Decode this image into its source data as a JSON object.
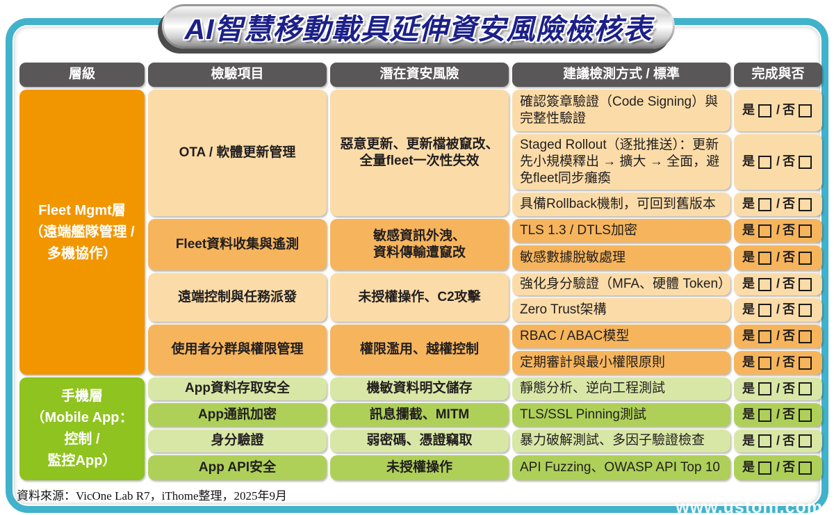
{
  "title": "AI智慧移動載具延伸資安風險檢核表",
  "palette": {
    "frame_teal": "#41b2cc",
    "header_gray": "#595757",
    "fleet_orange": "#f29600",
    "mobile_green": "#8fc31f",
    "peach_light": "#fbdca8",
    "peach_dark": "#f6b55c",
    "green_light": "#d8e7a6",
    "green_dark": "#aed059",
    "title_navy": "#1c2088"
  },
  "table": {
    "headers": [
      "層級",
      "檢驗項目",
      "潛在資安風險",
      "建議檢測方式 / 標準",
      "完成與否"
    ],
    "levels": [
      {
        "label": "Fleet Mgmt層\n（遠端艦隊管理 /\n多機協作）"
      },
      {
        "label": "手機層\n（Mobile App：\n控制 /\n監控App）"
      }
    ],
    "items": [
      {
        "name": "OTA / 軟體更新管理",
        "risk": "惡意更新、更新檔被竄改、\n全量fleet一次性失效"
      },
      {
        "name": "Fleet資料收集與遙測",
        "risk": "敏感資訊外洩、\n資料傳輸遭竄改"
      },
      {
        "name": "遠端控制與任務派發",
        "risk": "未授權操作、C2攻擊"
      },
      {
        "name": "使用者分群與權限管理",
        "risk": "權限濫用、越權控制"
      },
      {
        "name": "App資料存取安全",
        "risk": "機敏資料明文儲存"
      },
      {
        "name": "App通訊加密",
        "risk": "訊息攔截、MITM"
      },
      {
        "name": "身分驗證",
        "risk": "弱密碼、憑證竊取"
      },
      {
        "name": "App API安全",
        "risk": "未授權操作"
      }
    ],
    "methods": [
      "確認簽章驗證（Code Signing）與完整性驗證",
      "Staged Rollout（逐批推送）：更新先小規模釋出 → 擴大 → 全面，避免fleet同步癱瘓",
      "具備Rollback機制，可回到舊版本",
      "TLS 1.3 / DTLS加密",
      "敏感數據脫敏處理",
      "強化身分驗證（MFA、硬體 Token）",
      "Zero Trust架構",
      "RBAC / ABAC模型",
      "定期審計與最小權限原則",
      "靜態分析、逆向工程測試",
      "TLS/SSL Pinning測試",
      "暴力破解測試、多因子驗證檢查",
      "API Fuzzing、OWASP API Top 10"
    ],
    "checkbox": {
      "yes": "是",
      "separator": "/",
      "no": "否"
    }
  },
  "footer": {
    "source": "資料來源：VicOne Lab R7，iThome整理，2025年9月"
  },
  "watermark": "www.ustoni.com"
}
